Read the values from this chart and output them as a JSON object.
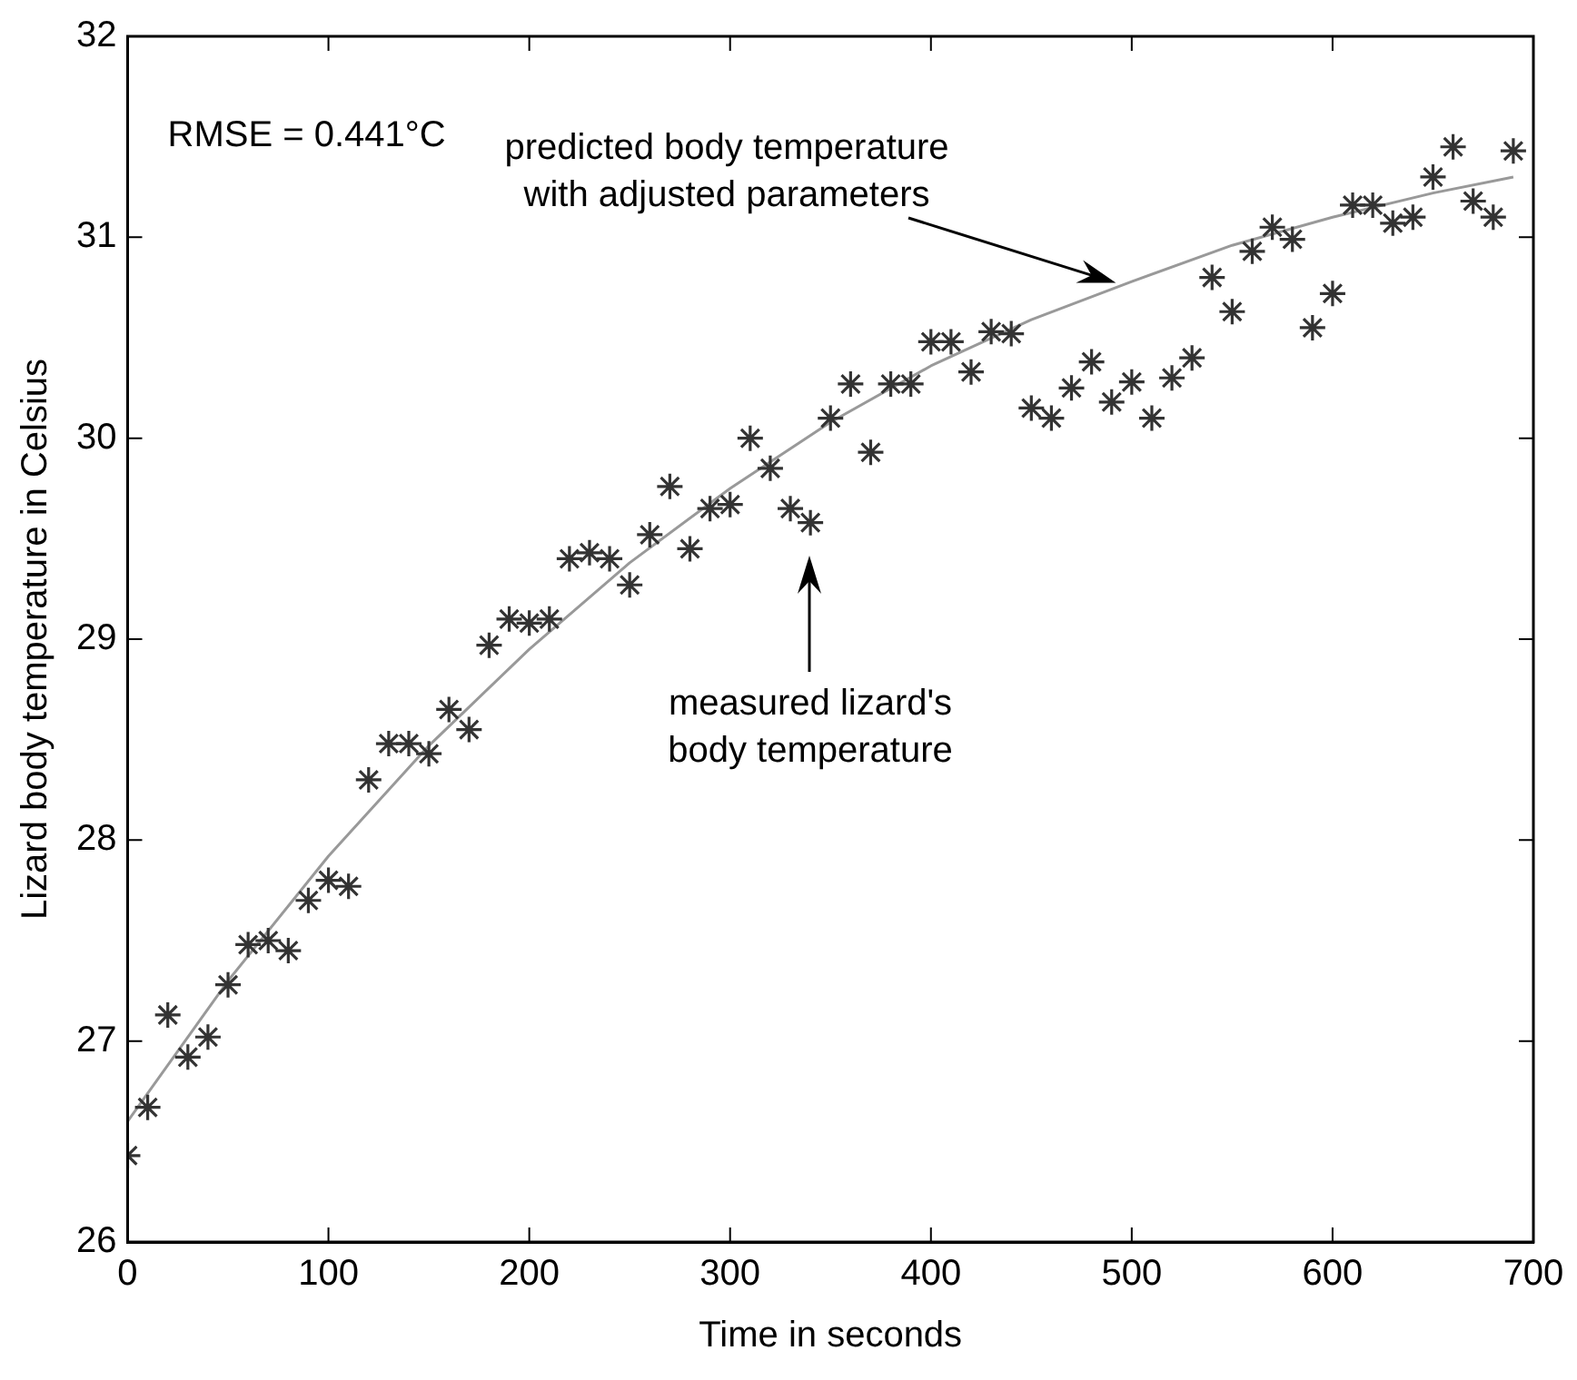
{
  "chart_data": {
    "type": "scatter",
    "xlabel": "Time in seconds",
    "ylabel": "Lizard body temperature in Celsius",
    "xlim": [
      0,
      700
    ],
    "xticks": [
      0,
      100,
      200,
      300,
      400,
      500,
      600,
      700
    ],
    "ylim": [
      26,
      32
    ],
    "yticks": [
      26,
      27,
      28,
      29,
      30,
      31,
      32
    ],
    "grid": false,
    "legend": false,
    "annotations": [
      "RMSE = 0.441°C",
      "predicted body temperature\nwith adjusted parameters",
      "measured lizard's\nbody temperature"
    ],
    "series": [
      {
        "type": "scatter",
        "marker": "cross",
        "color": "#333333",
        "x": [
          0,
          10,
          20,
          30,
          40,
          50,
          60,
          70,
          80,
          90,
          100,
          110,
          120,
          130,
          140,
          150,
          160,
          170,
          180,
          190,
          200,
          210,
          220,
          230,
          240,
          250,
          260,
          270,
          280,
          290,
          300,
          310,
          320,
          330,
          340,
          350,
          360,
          370,
          380,
          390,
          400,
          410,
          420,
          430,
          440,
          450,
          460,
          470,
          480,
          490,
          500,
          510,
          520,
          530,
          540,
          550,
          560,
          570,
          580,
          590,
          600,
          610,
          620,
          630,
          640,
          650,
          660,
          670,
          680,
          690
        ],
        "values": [
          26.43,
          26.67,
          27.13,
          26.92,
          27.02,
          27.28,
          27.48,
          27.5,
          27.45,
          27.7,
          27.8,
          27.77,
          28.3,
          28.48,
          28.48,
          28.43,
          28.65,
          28.55,
          28.97,
          29.1,
          29.08,
          29.1,
          29.4,
          29.43,
          29.4,
          29.27,
          29.52,
          29.76,
          29.45,
          29.65,
          29.67,
          30.0,
          29.85,
          29.65,
          29.58,
          30.1,
          30.27,
          29.93,
          30.27,
          30.27,
          30.48,
          30.48,
          30.33,
          30.53,
          30.52,
          30.15,
          30.1,
          30.25,
          30.38,
          30.18,
          30.28,
          30.1,
          30.3,
          30.4,
          30.8,
          30.63,
          30.93,
          31.05,
          30.99,
          30.55,
          30.72,
          31.16,
          31.16,
          31.07,
          31.1,
          31.3,
          31.45,
          31.18,
          31.1,
          31.43
        ]
      },
      {
        "type": "line",
        "marker": "none",
        "line_style": "solid",
        "color": "#999999",
        "x": [
          0,
          50,
          100,
          150,
          200,
          250,
          300,
          350,
          400,
          450,
          500,
          550,
          600,
          650,
          690
        ],
        "values": [
          26.6,
          27.3,
          27.92,
          28.47,
          28.95,
          29.38,
          29.75,
          30.08,
          30.36,
          30.59,
          30.78,
          30.96,
          31.1,
          31.22,
          31.3
        ]
      }
    ]
  }
}
